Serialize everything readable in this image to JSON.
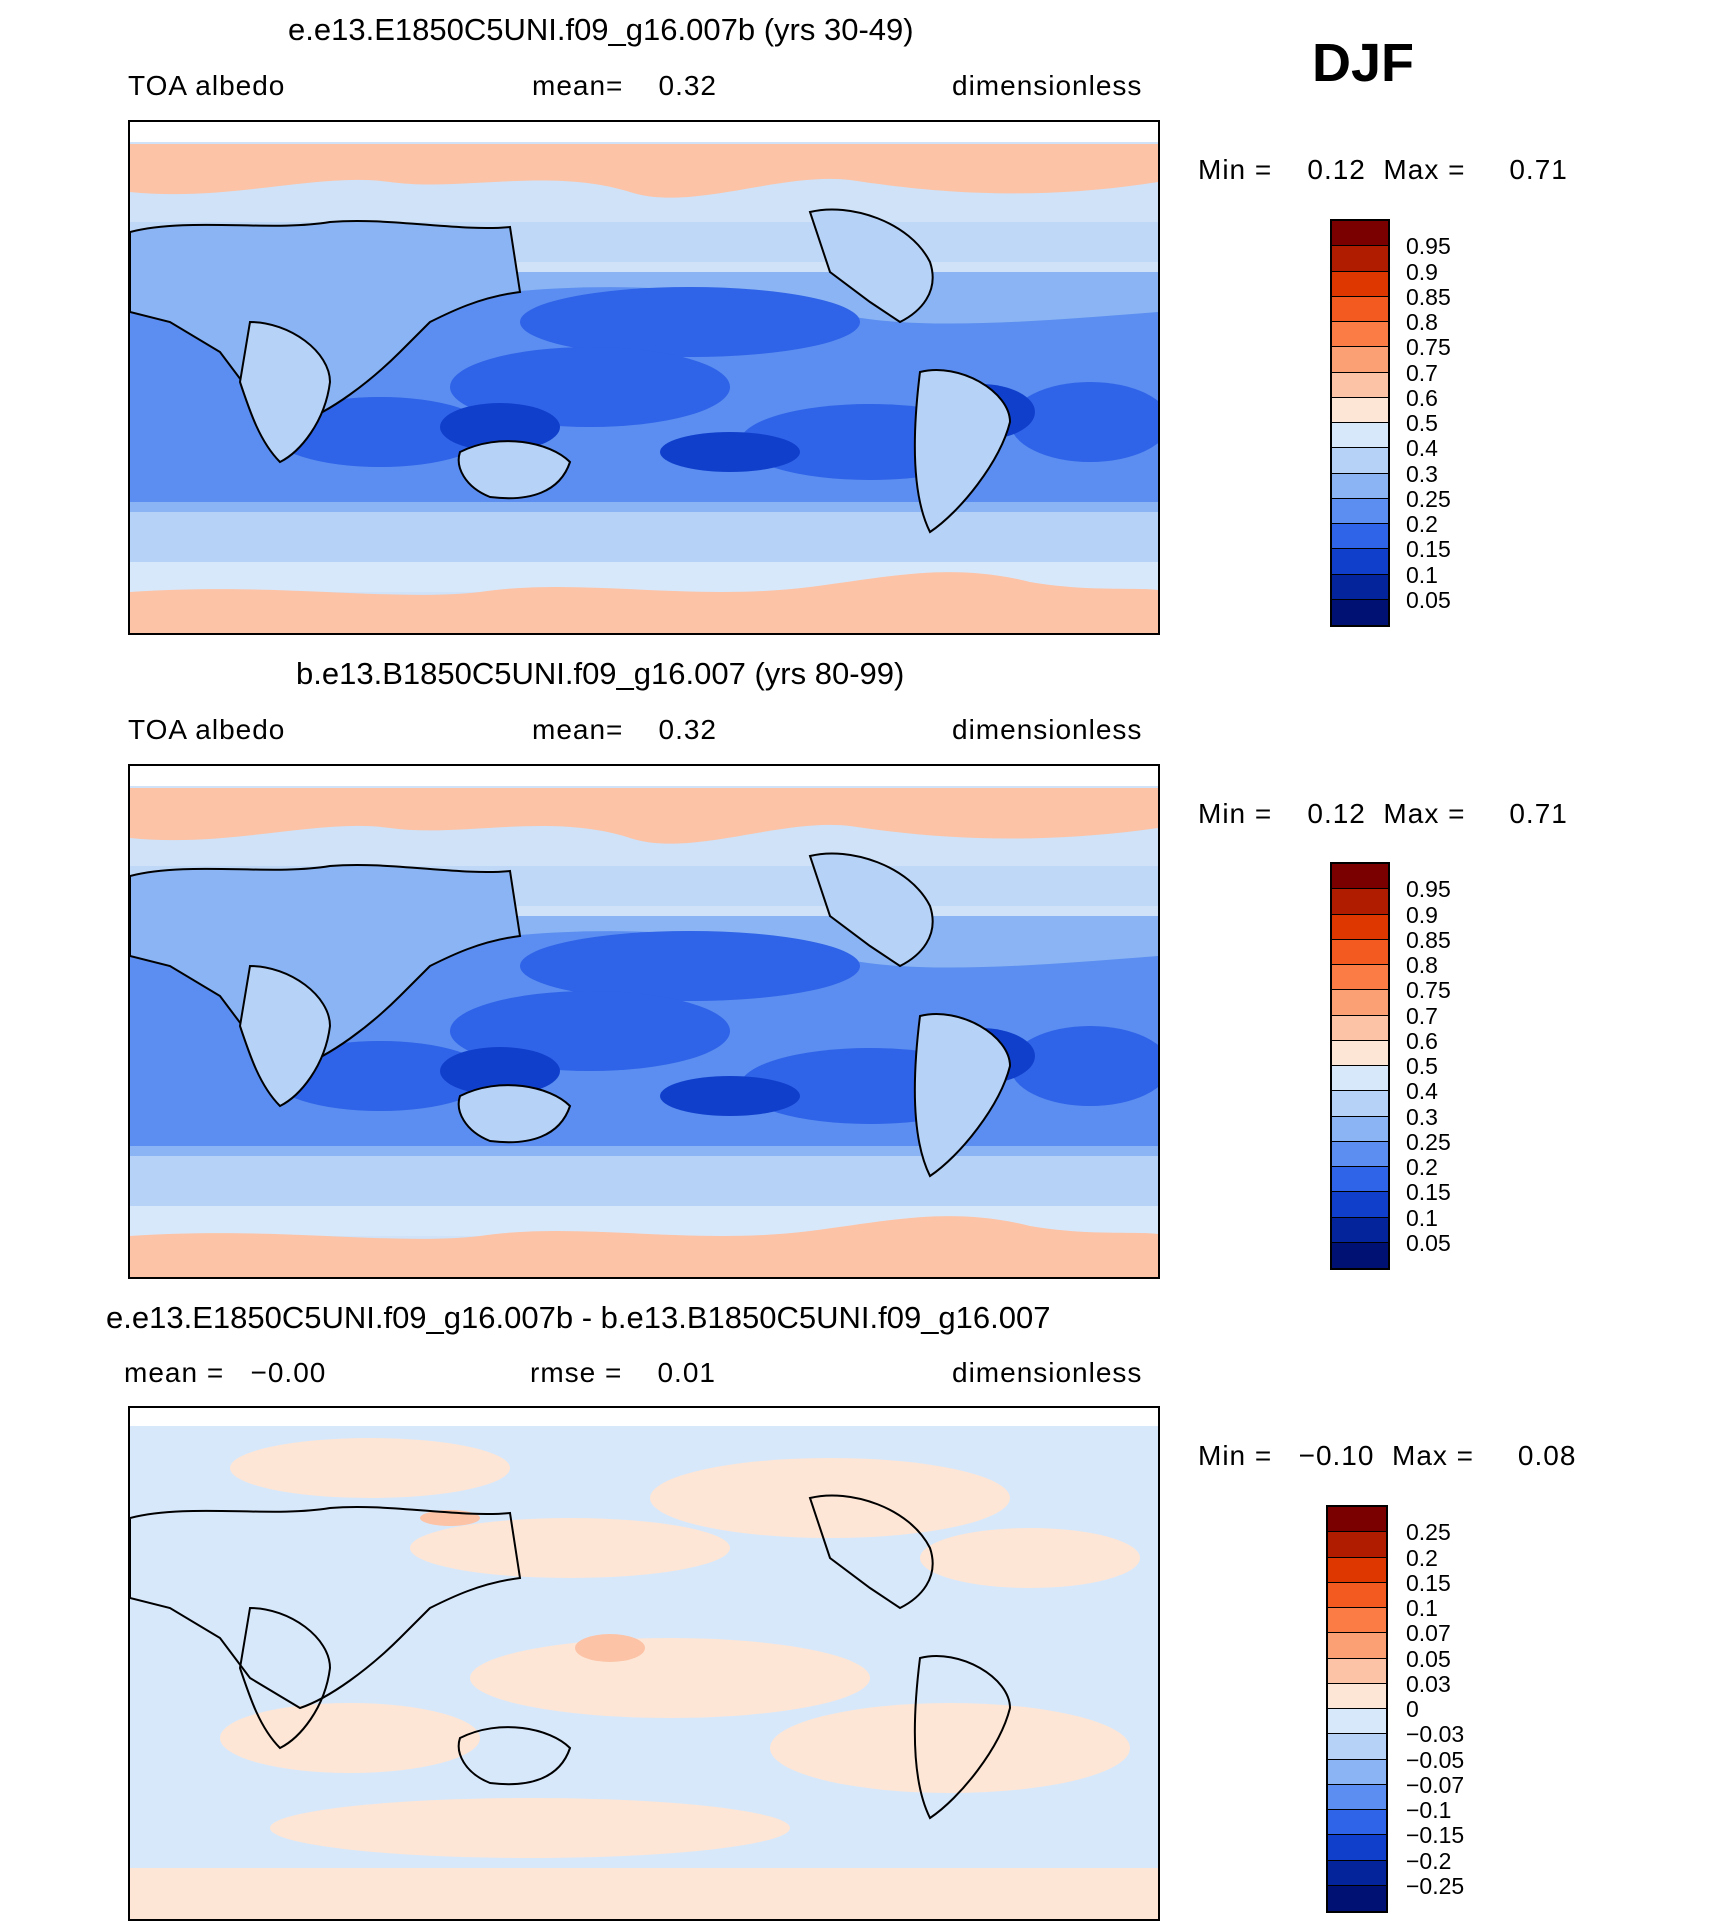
{
  "season": "DJF",
  "panels": [
    {
      "title": "e.e13.E1850C5UNI.f09_g16.007b (yrs 30-49)",
      "left": "TOA albedo",
      "mid": "mean=    0.32",
      "right": "dimensionless",
      "minmax": "Min =    0.12  Max =     0.71",
      "colorbar": {
        "labels": [
          "0.95",
          "0.9",
          "0.85",
          "0.8",
          "0.75",
          "0.7",
          "0.6",
          "0.5",
          "0.4",
          "0.3",
          "0.25",
          "0.2",
          "0.15",
          "0.1",
          "0.05"
        ],
        "colors": [
          "#7a0000",
          "#b01c00",
          "#de3800",
          "#f25a1f",
          "#fb7c45",
          "#fb9f74",
          "#fcc3a6",
          "#fde6d6",
          "#d8e8fb",
          "#b6d2f7",
          "#8ab4f3",
          "#5b8ef0",
          "#2f63e8",
          "#103fcc",
          "#03249a",
          "#001174"
        ]
      }
    },
    {
      "title": "b.e13.B1850C5UNI.f09_g16.007 (yrs 80-99)",
      "left": "TOA albedo",
      "mid": "mean=    0.32",
      "right": "dimensionless",
      "minmax": "Min =    0.12  Max =     0.71",
      "colorbar": {
        "labels": [
          "0.95",
          "0.9",
          "0.85",
          "0.8",
          "0.75",
          "0.7",
          "0.6",
          "0.5",
          "0.4",
          "0.3",
          "0.25",
          "0.2",
          "0.15",
          "0.1",
          "0.05"
        ],
        "colors": [
          "#7a0000",
          "#b01c00",
          "#de3800",
          "#f25a1f",
          "#fb7c45",
          "#fb9f74",
          "#fcc3a6",
          "#fde6d6",
          "#d8e8fb",
          "#b6d2f7",
          "#8ab4f3",
          "#5b8ef0",
          "#2f63e8",
          "#103fcc",
          "#03249a",
          "#001174"
        ]
      }
    },
    {
      "title": "e.e13.E1850C5UNI.f09_g16.007b - b.e13.B1850C5UNI.f09_g16.007",
      "left": "mean =   −0.00",
      "mid": "rmse =    0.01",
      "right": "dimensionless",
      "minmax": "Min =   −0.10  Max =     0.08",
      "colorbar": {
        "labels": [
          "0.25",
          "0.2",
          "0.15",
          "0.1",
          "0.07",
          "0.05",
          "0.03",
          "0",
          "−0.03",
          "−0.05",
          "−0.07",
          "−0.1",
          "−0.15",
          "−0.2",
          "−0.25"
        ],
        "colors": [
          "#7a0000",
          "#b01c00",
          "#de3800",
          "#f25a1f",
          "#fb7c45",
          "#fb9f74",
          "#fcc3a6",
          "#fde6d6",
          "#d8e8fb",
          "#b6d2f7",
          "#8ab4f3",
          "#5b8ef0",
          "#2f63e8",
          "#103fcc",
          "#03249a",
          "#001174"
        ]
      }
    }
  ]
}
